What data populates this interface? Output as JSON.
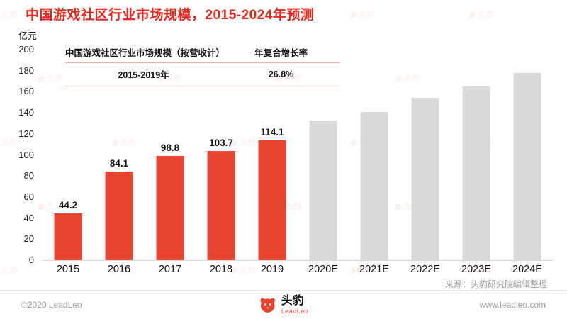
{
  "title": "中国游戏社区行业市场规模，2015-2024年预测",
  "y_axis_unit": "亿元",
  "info_table": {
    "col1_header": "中国游戏社区行业市场规模（按营收计）",
    "col1_value": "2015-2019年",
    "col2_header": "年复合增长率",
    "col2_value": "26.8%"
  },
  "source": "来源：头豹研究院编辑整理",
  "footer": {
    "copyright": "©2020 LeadLeo",
    "brand": "头豹",
    "brand_sub": "LeadLeo",
    "website": "www.leadleo.com"
  },
  "watermark": "头豹",
  "colors": {
    "title_red": "#ea2418",
    "bar_red": "#e8432e",
    "bar_gray": "#d9d9d9"
  },
  "chart_data": {
    "type": "bar",
    "title": "中国游戏社区行业市场规模，2015-2024年预测",
    "ylabel": "亿元",
    "xlabel": "",
    "categories": [
      "2015",
      "2016",
      "2017",
      "2018",
      "2019",
      "2020E",
      "2021E",
      "2022E",
      "2023E",
      "2024E"
    ],
    "values": [
      44.2,
      84.1,
      98.8,
      103.7,
      114.1,
      133,
      141,
      154,
      165,
      178
    ],
    "forecast_from_index": 5,
    "data_labels_shown_for_historical_only": true,
    "ylim": [
      0,
      200
    ],
    "ytick_step": 20,
    "grid": false,
    "legend_position": "none",
    "bar_color_historical": "#e8432e",
    "bar_color_forecast": "#d9d9d9"
  }
}
